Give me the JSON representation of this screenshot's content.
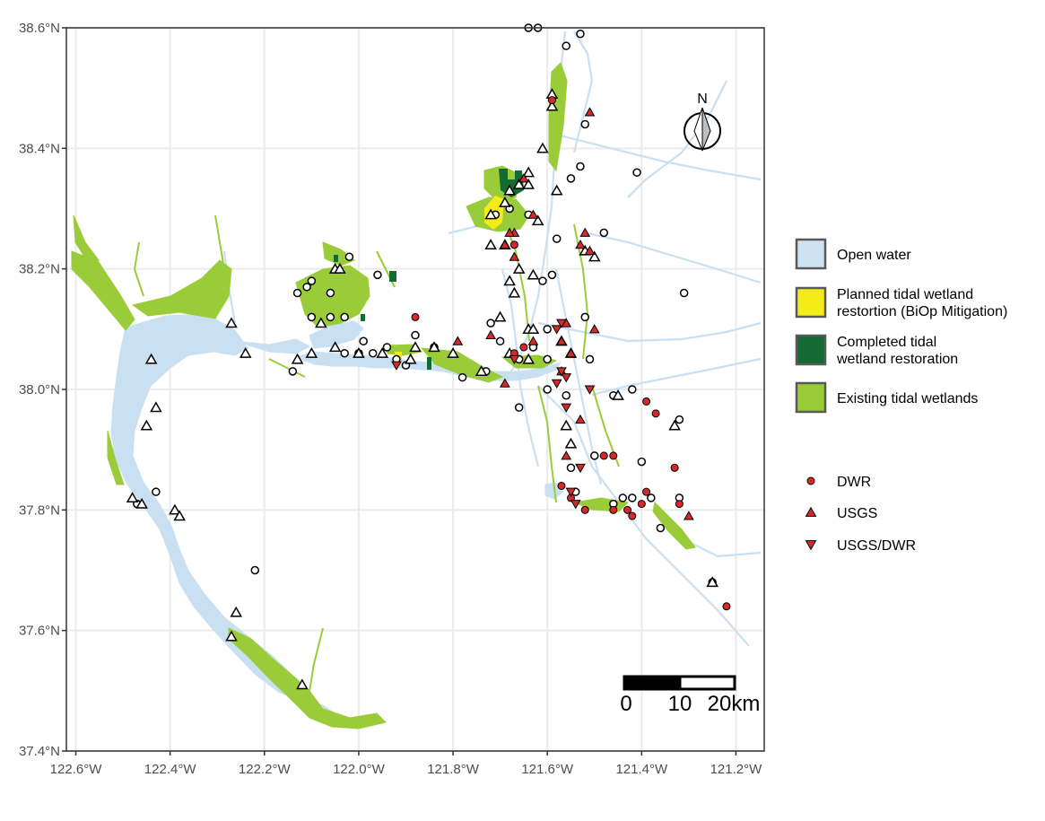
{
  "axes": {
    "x_ticks": [
      "122.6°W",
      "122.4°W",
      "122.2°W",
      "122.0°W",
      "121.8°W",
      "121.6°W",
      "121.4°W",
      "121.2°W"
    ],
    "y_ticks": [
      "38.6°N",
      "38.4°N",
      "38.2°N",
      "38.0°N",
      "37.8°N",
      "37.6°N",
      "37.4°N"
    ],
    "x_range_lon": [
      -122.62,
      -121.14
    ],
    "y_range_lat": [
      37.4,
      38.6
    ]
  },
  "north_arrow": {
    "label": "N"
  },
  "scale_bar": {
    "labels": [
      "0",
      "10",
      "20km"
    ]
  },
  "legend_habitat": [
    {
      "label_lines": [
        "Open water"
      ],
      "color": "#cfe2f3"
    },
    {
      "label_lines": [
        "Planned tidal wetland",
        "restortion (BiOp Mitigation)"
      ],
      "color": "#f3ec18"
    },
    {
      "label_lines": [
        "Completed tidal",
        "wetland restoration"
      ],
      "color": "#136b33"
    },
    {
      "label_lines": [
        "Existing tidal wetlands"
      ],
      "color": "#9acc3a"
    }
  ],
  "legend_stations": [
    {
      "label": "DWR",
      "shape": "circle",
      "fill": "#d42a2a"
    },
    {
      "label": "USGS",
      "shape": "triangle-up",
      "fill": "#d42a2a"
    },
    {
      "label": "USGS/DWR",
      "shape": "triangle-down",
      "fill": "#d42a2a"
    }
  ],
  "colors": {
    "water": "#c9e0f2",
    "wetland": "#9acc3a",
    "restored": "#136b33",
    "planned": "#f3ec18",
    "station_red": "#d42a2a",
    "station_open": "#ffffff",
    "grid": "#ebebeb"
  },
  "stations": {
    "open_circles": [
      [
        -121.64,
        38.6
      ],
      [
        -121.62,
        38.6
      ],
      [
        -121.53,
        38.59
      ],
      [
        -121.56,
        38.57
      ],
      [
        -121.52,
        38.44
      ],
      [
        -121.53,
        38.37
      ],
      [
        -121.55,
        38.35
      ],
      [
        -121.41,
        38.36
      ],
      [
        -121.68,
        38.3
      ],
      [
        -121.71,
        38.29
      ],
      [
        -121.64,
        38.29
      ],
      [
        -121.58,
        38.25
      ],
      [
        -121.48,
        38.26
      ],
      [
        -121.59,
        38.19
      ],
      [
        -121.61,
        38.18
      ],
      [
        -121.6,
        38.1
      ],
      [
        -121.52,
        38.12
      ],
      [
        -121.51,
        38.05
      ],
      [
        -121.31,
        38.16
      ],
      [
        -122.1,
        38.18
      ],
      [
        -122.06,
        38.16
      ],
      [
        -122.02,
        38.22
      ],
      [
        -121.96,
        38.19
      ],
      [
        -122.11,
        38.17
      ],
      [
        -122.13,
        38.16
      ],
      [
        -122.1,
        38.12
      ],
      [
        -122.06,
        38.12
      ],
      [
        -122.03,
        38.12
      ],
      [
        -121.99,
        38.08
      ],
      [
        -122.03,
        38.06
      ],
      [
        -122.0,
        38.06
      ],
      [
        -121.97,
        38.06
      ],
      [
        -121.94,
        38.07
      ],
      [
        -121.92,
        38.05
      ],
      [
        -121.9,
        38.04
      ],
      [
        -121.88,
        38.09
      ],
      [
        -122.14,
        38.03
      ],
      [
        -121.84,
        38.07
      ],
      [
        -121.78,
        38.02
      ],
      [
        -121.73,
        38.03
      ],
      [
        -121.7,
        38.08
      ],
      [
        -121.66,
        38.05
      ],
      [
        -121.63,
        38.07
      ],
      [
        -121.6,
        38.05
      ],
      [
        -121.6,
        38.0
      ],
      [
        -121.56,
        37.99
      ],
      [
        -121.55,
        37.87
      ],
      [
        -121.54,
        37.83
      ],
      [
        -121.5,
        37.89
      ],
      [
        -121.46,
        37.81
      ],
      [
        -121.44,
        37.82
      ],
      [
        -121.42,
        37.82
      ],
      [
        -121.4,
        37.88
      ],
      [
        -121.38,
        37.82
      ],
      [
        -121.36,
        37.77
      ],
      [
        -121.32,
        37.82
      ],
      [
        -121.32,
        37.95
      ],
      [
        -121.42,
        38.0
      ],
      [
        -121.46,
        37.99
      ],
      [
        -122.22,
        37.7
      ],
      [
        -122.47,
        37.81
      ],
      [
        -122.43,
        37.83
      ],
      [
        -121.25,
        37.68
      ],
      [
        -121.66,
        37.97
      ],
      [
        -121.72,
        38.11
      ]
    ],
    "open_triangles": [
      [
        -121.59,
        38.49
      ],
      [
        -121.59,
        38.47
      ],
      [
        -121.61,
        38.4
      ],
      [
        -121.64,
        38.36
      ],
      [
        -121.64,
        38.34
      ],
      [
        -121.69,
        38.31
      ],
      [
        -121.72,
        38.29
      ],
      [
        -121.62,
        38.28
      ],
      [
        -121.58,
        38.33
      ],
      [
        -121.66,
        38.34
      ],
      [
        -121.68,
        38.33
      ],
      [
        -121.5,
        38.22
      ],
      [
        -121.52,
        38.23
      ],
      [
        -121.63,
        38.19
      ],
      [
        -121.72,
        38.24
      ],
      [
        -121.66,
        38.2
      ],
      [
        -121.68,
        38.18
      ],
      [
        -121.67,
        38.16
      ],
      [
        -121.7,
        38.12
      ],
      [
        -121.64,
        38.1
      ],
      [
        -121.63,
        38.1
      ],
      [
        -121.57,
        38.08
      ],
      [
        -121.55,
        38.06
      ],
      [
        -121.64,
        38.05
      ],
      [
        -121.68,
        38.06
      ],
      [
        -121.74,
        38.03
      ],
      [
        -121.8,
        38.06
      ],
      [
        -121.84,
        38.07
      ],
      [
        -121.89,
        38.05
      ],
      [
        -121.95,
        38.06
      ],
      [
        -122.0,
        38.06
      ],
      [
        -122.05,
        38.07
      ],
      [
        -122.08,
        38.11
      ],
      [
        -122.05,
        38.2
      ],
      [
        -122.04,
        38.2
      ],
      [
        -122.1,
        38.06
      ],
      [
        -122.13,
        38.05
      ],
      [
        -122.27,
        38.11
      ],
      [
        -122.24,
        38.06
      ],
      [
        -121.45,
        37.99
      ],
      [
        -121.55,
        37.91
      ],
      [
        -121.56,
        37.94
      ],
      [
        -121.33,
        37.94
      ],
      [
        -121.88,
        38.07
      ],
      [
        -122.44,
        38.05
      ],
      [
        -122.43,
        37.97
      ],
      [
        -122.45,
        37.94
      ],
      [
        -122.48,
        37.82
      ],
      [
        -122.46,
        37.81
      ],
      [
        -122.39,
        37.8
      ],
      [
        -122.38,
        37.79
      ],
      [
        -122.26,
        37.63
      ],
      [
        -122.27,
        37.59
      ],
      [
        -122.12,
        37.51
      ],
      [
        -121.25,
        37.68
      ],
      [
        -121.69,
        38.24
      ]
    ],
    "dwr_circles": [
      [
        -121.59,
        38.48
      ],
      [
        -121.88,
        38.12
      ],
      [
        -121.65,
        38.07
      ],
      [
        -121.67,
        38.06
      ],
      [
        -121.67,
        38.24
      ],
      [
        -121.46,
        37.89
      ],
      [
        -121.48,
        37.89
      ],
      [
        -121.39,
        37.98
      ],
      [
        -121.37,
        37.96
      ],
      [
        -121.33,
        37.87
      ],
      [
        -121.39,
        37.83
      ],
      [
        -121.4,
        37.81
      ],
      [
        -121.42,
        37.79
      ],
      [
        -121.43,
        37.8
      ],
      [
        -121.52,
        37.8
      ],
      [
        -121.55,
        37.82
      ],
      [
        -121.57,
        37.84
      ],
      [
        -121.32,
        37.81
      ],
      [
        -121.22,
        37.64
      ],
      [
        -121.46,
        37.8
      ]
    ],
    "usgs_triangles": [
      [
        -121.51,
        38.46
      ],
      [
        -121.65,
        38.35
      ],
      [
        -121.63,
        38.29
      ],
      [
        -121.52,
        38.26
      ],
      [
        -121.53,
        38.24
      ],
      [
        -121.51,
        38.23
      ],
      [
        -121.67,
        38.26
      ],
      [
        -121.67,
        38.22
      ],
      [
        -121.69,
        38.24
      ],
      [
        -121.68,
        38.26
      ],
      [
        -121.72,
        38.09
      ],
      [
        -121.79,
        38.08
      ],
      [
        -121.63,
        38.08
      ],
      [
        -121.55,
        38.06
      ],
      [
        -121.5,
        38.1
      ],
      [
        -121.56,
        37.89
      ],
      [
        -121.53,
        37.95
      ],
      [
        -121.3,
        37.79
      ],
      [
        -121.69,
        38.01
      ],
      [
        -121.57,
        38.03
      ],
      [
        -121.56,
        38.11
      ],
      [
        -121.57,
        38.08
      ]
    ],
    "usgs_dwr_triangles": [
      [
        -121.92,
        38.04
      ],
      [
        -121.56,
        38.02
      ],
      [
        -121.57,
        38.03
      ],
      [
        -121.58,
        38.01
      ],
      [
        -121.51,
        38.0
      ],
      [
        -121.56,
        37.97
      ],
      [
        -121.55,
        37.83
      ],
      [
        -121.54,
        37.81
      ],
      [
        -121.53,
        37.87
      ],
      [
        -121.58,
        38.1
      ],
      [
        -121.67,
        38.05
      ],
      [
        -121.57,
        38.11
      ]
    ]
  }
}
